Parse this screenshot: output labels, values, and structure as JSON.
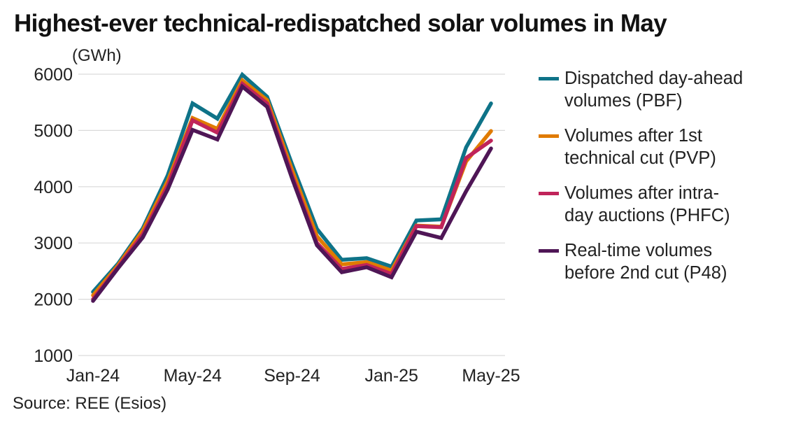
{
  "chart_data": {
    "type": "line",
    "title": "Highest-ever technical-redispatched solar volumes in May",
    "ylabel": "(GWh)",
    "xlabel": "",
    "source": "Source: REE (Esios)",
    "ylim": [
      1000,
      6000
    ],
    "yticks": [
      1000,
      2000,
      3000,
      4000,
      5000,
      6000
    ],
    "grid": true,
    "legend_position": "right",
    "x": [
      "Jan-24",
      "Feb-24",
      "Mar-24",
      "Apr-24",
      "May-24",
      "Jun-24",
      "Jul-24",
      "Aug-24",
      "Sep-24",
      "Oct-24",
      "Nov-24",
      "Dec-24",
      "Jan-25",
      "Feb-25",
      "Mar-25",
      "Apr-25",
      "May-25"
    ],
    "xtick_labels": [
      "Jan-24",
      "May-24",
      "Sep-24",
      "Jan-25",
      "May-25"
    ],
    "series": [
      {
        "name": "Dispatched day-ahead volumes (PBF)",
        "color": "#0e7388",
        "values": [
          2130,
          2630,
          3260,
          4200,
          5480,
          5210,
          5990,
          5600,
          4400,
          3250,
          2700,
          2730,
          2580,
          3400,
          3420,
          4700,
          5480
        ]
      },
      {
        "name": "Volumes after 1st technical cut (PVP)",
        "color": "#e07b00",
        "values": [
          2070,
          2600,
          3220,
          4100,
          5220,
          5030,
          5890,
          5540,
          4300,
          3120,
          2620,
          2660,
          2510,
          3310,
          3290,
          4450,
          4990
        ]
      },
      {
        "name": "Volumes after intra-day auctions (PHFC)",
        "color": "#c0245a",
        "values": [
          2000,
          2570,
          3150,
          4020,
          5180,
          4960,
          5830,
          5480,
          4200,
          3000,
          2540,
          2610,
          2450,
          3300,
          3280,
          4510,
          4820
        ]
      },
      {
        "name": "Real-time volumes before 2nd cut (P48)",
        "color": "#4f1656",
        "values": [
          1970,
          2550,
          3100,
          3950,
          5010,
          4840,
          5780,
          5420,
          4150,
          2960,
          2480,
          2570,
          2390,
          3200,
          3090,
          3920,
          4680
        ]
      }
    ]
  },
  "legend": {
    "items": [
      {
        "line1": "Dispatched day-ahead",
        "line2": "volumes (PBF)",
        "color": "#0e7388"
      },
      {
        "line1": "Volumes after 1st",
        "line2": "technical cut (PVP)",
        "color": "#e07b00"
      },
      {
        "line1": "Volumes after intra-",
        "line2": "day auctions (PHFC)",
        "color": "#c0245a"
      },
      {
        "line1": "Real-time volumes",
        "line2": "before 2nd cut (P48)",
        "color": "#4f1656"
      }
    ]
  }
}
